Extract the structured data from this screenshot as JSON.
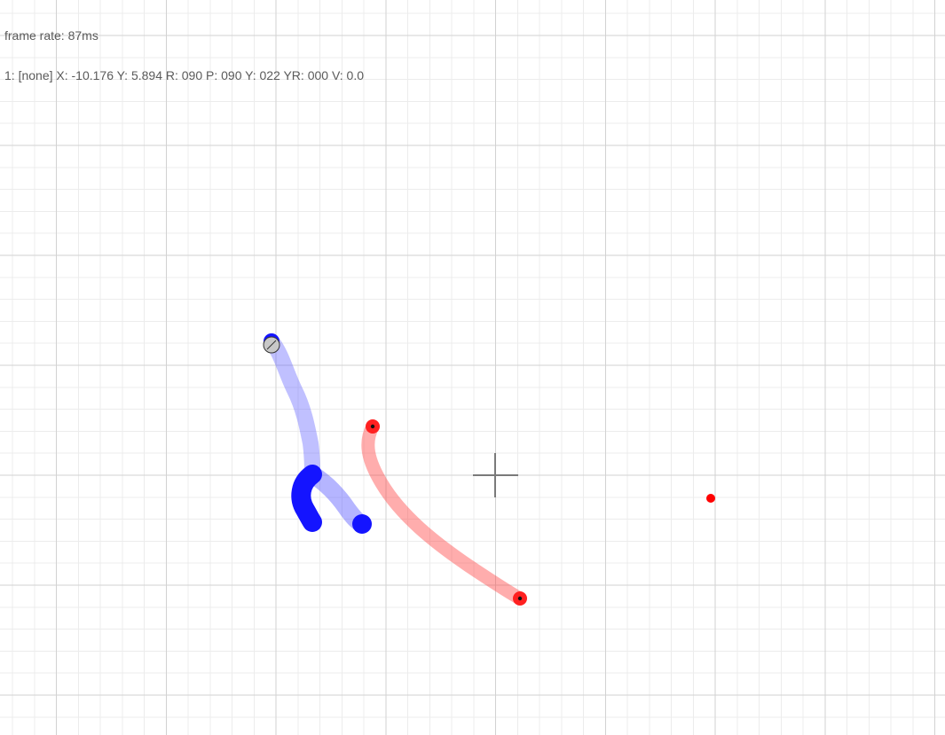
{
  "hud": {
    "frame_rate": "frame rate: 87ms",
    "pointer_status": "1: [none] X: -10.176 Y: 5.894 R: 090 P: 090 Y: 022 YR: 000 V: 0.0"
  },
  "colors": {
    "background": "#ffffff",
    "grid_minor": "#ececec",
    "grid_major": "#d2d2d2",
    "crosshair": "#7a7a7a",
    "blue_trail": "#1010ff",
    "red_trail": "#ff2020",
    "red_dot": "#ff0000",
    "pen_cursor": "#c8c8c8"
  }
}
